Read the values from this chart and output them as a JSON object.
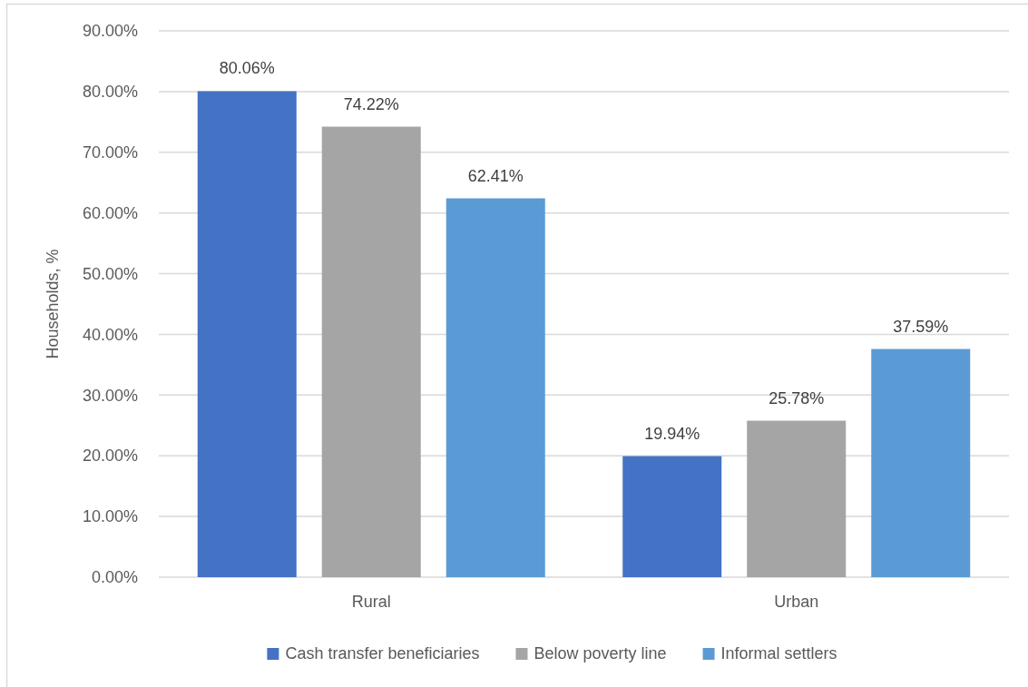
{
  "chart_data": {
    "type": "bar",
    "ylabel": "Households, %",
    "categories": [
      "Rural",
      "Urban"
    ],
    "series": [
      {
        "name": "Cash transfer beneficiaries",
        "color": "#4472c4",
        "values": [
          80.06,
          19.94
        ],
        "value_labels": [
          "80.06%",
          "19.94%"
        ]
      },
      {
        "name": "Below poverty line",
        "color": "#a5a5a5",
        "values": [
          74.22,
          25.78
        ],
        "value_labels": [
          "74.22%",
          "25.78%"
        ]
      },
      {
        "name": "Informal settlers",
        "color": "#5b9bd5",
        "values": [
          62.41,
          37.59
        ],
        "value_labels": [
          "62.41%",
          "37.59%"
        ]
      }
    ],
    "ylim": [
      0,
      90
    ],
    "yticks": [
      {
        "value": 0,
        "label": "0.00%"
      },
      {
        "value": 10,
        "label": "10.00%"
      },
      {
        "value": 20,
        "label": "20.00%"
      },
      {
        "value": 30,
        "label": "30.00%"
      },
      {
        "value": 40,
        "label": "40.00%"
      },
      {
        "value": 50,
        "label": "50.00%"
      },
      {
        "value": 60,
        "label": "60.00%"
      },
      {
        "value": 70,
        "label": "70.00%"
      },
      {
        "value": 80,
        "label": "80.00%"
      },
      {
        "value": 90,
        "label": "90.00%"
      }
    ],
    "grid": "y",
    "legend": "bottom"
  }
}
